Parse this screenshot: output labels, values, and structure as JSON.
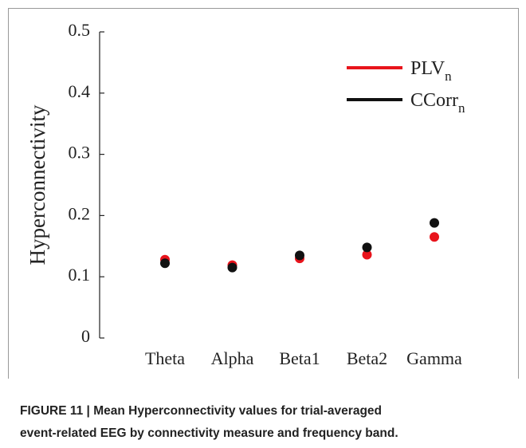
{
  "chart_data": {
    "type": "line",
    "ylabel": "Hyperconnectivity",
    "categories": [
      "Theta",
      "Alpha",
      "Beta1",
      "Beta2",
      "Gamma"
    ],
    "series": [
      {
        "name": "PLV",
        "name_subscript": "n",
        "color": "#e8141c",
        "values": [
          0.128,
          0.119,
          0.13,
          0.136,
          0.165
        ]
      },
      {
        "name": "CCorr",
        "name_subscript": "n",
        "color": "#111111",
        "values": [
          0.122,
          0.115,
          0.135,
          0.148,
          0.188
        ]
      }
    ],
    "ylim": [
      0,
      0.5
    ],
    "yticks": [
      0,
      0.1,
      0.2,
      0.3,
      0.4,
      0.5
    ],
    "legend": "upper right",
    "caption_lines": [
      "FIGURE 11 | Mean Hyperconnectivity values for trial-averaged",
      "event-related EEG by connectivity measure and frequency band."
    ]
  }
}
